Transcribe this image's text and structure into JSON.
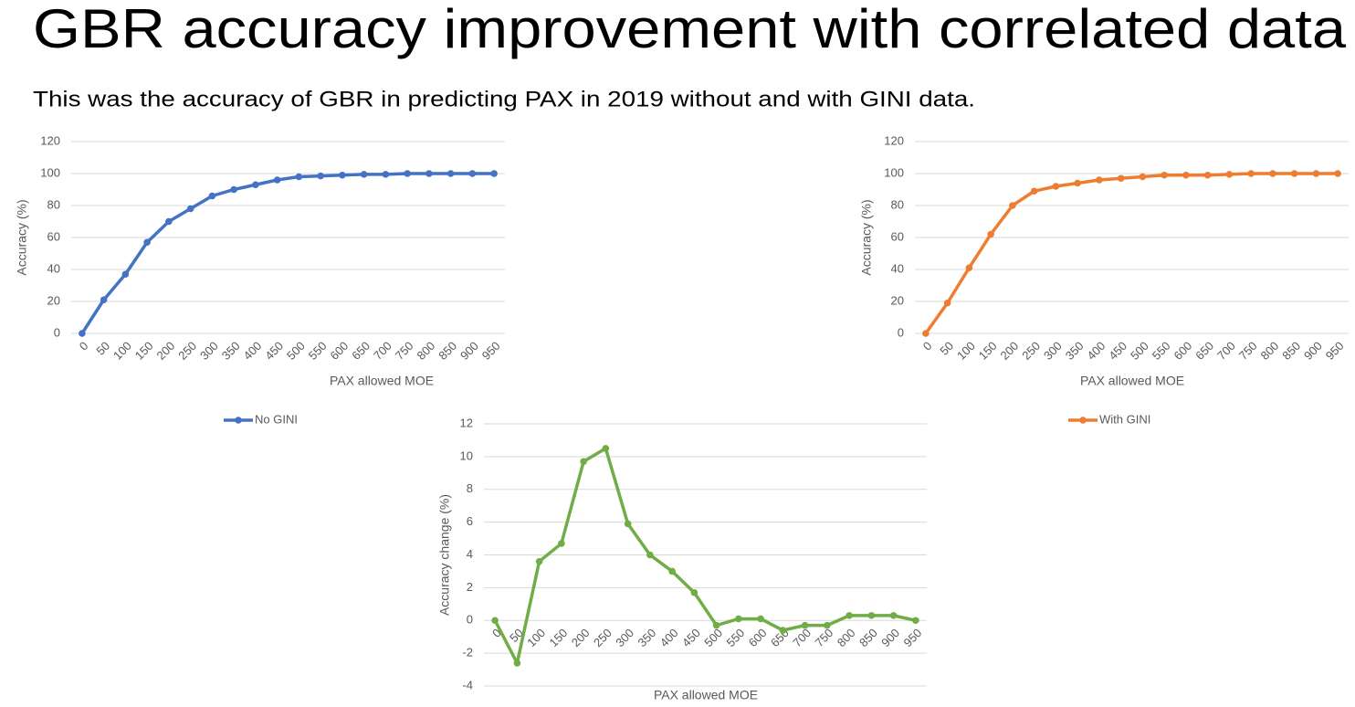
{
  "header": {
    "title": "GBR accuracy improvement with correlated data",
    "subtitle": "This was the accuracy of GBR in predicting PAX in 2019 without and with GINI data."
  },
  "chart_data": [
    {
      "type": "line",
      "x_label": "PAX allowed MOE",
      "y_label": "Accuracy (%)",
      "categories": [
        "0",
        "50",
        "100",
        "150",
        "200",
        "250",
        "300",
        "350",
        "400",
        "450",
        "500",
        "550",
        "600",
        "650",
        "700",
        "750",
        "800",
        "850",
        "900",
        "950"
      ],
      "series": [
        {
          "name": "No GINI",
          "color": "#4472c4",
          "values": [
            0,
            21,
            37,
            57,
            70,
            78,
            86,
            90,
            93,
            96,
            98,
            98.5,
            99,
            99.5,
            99.5,
            100,
            100,
            100,
            100,
            100
          ]
        }
      ],
      "ylim": [
        0,
        120
      ],
      "yticks": [
        0,
        20,
        40,
        60,
        80,
        100,
        120
      ],
      "grid": true,
      "legend": "bottom"
    },
    {
      "type": "line",
      "x_label": "PAX allowed MOE",
      "y_label": "Accuracy (%)",
      "categories": [
        "0",
        "50",
        "100",
        "150",
        "200",
        "250",
        "300",
        "350",
        "400",
        "450",
        "500",
        "550",
        "600",
        "650",
        "700",
        "750",
        "800",
        "850",
        "900",
        "950"
      ],
      "series": [
        {
          "name": "With GINI",
          "color": "#ed7d31",
          "values": [
            0,
            19,
            41,
            62,
            80,
            89,
            92,
            94,
            96,
            97,
            98,
            99,
            99,
            99,
            99.5,
            100,
            100,
            100,
            100,
            100
          ]
        }
      ],
      "ylim": [
        0,
        120
      ],
      "yticks": [
        0,
        20,
        40,
        60,
        80,
        100,
        120
      ],
      "grid": true,
      "legend": "bottom"
    },
    {
      "type": "line",
      "x_label": "PAX allowed MOE",
      "y_label": "Accuracy change (%)",
      "categories": [
        "0",
        "50",
        "100",
        "150",
        "200",
        "250",
        "300",
        "350",
        "400",
        "450",
        "500",
        "550",
        "600",
        "650",
        "700",
        "750",
        "800",
        "850",
        "900",
        "950"
      ],
      "series": [
        {
          "color": "#70ad47",
          "values": [
            0,
            -2.6,
            3.6,
            4.7,
            9.7,
            10.5,
            5.9,
            4.0,
            3.0,
            1.7,
            -0.3,
            0.1,
            0.1,
            -0.6,
            -0.3,
            -0.3,
            0.3,
            0.3,
            0.3,
            0
          ]
        }
      ],
      "ylim": [
        -4,
        12
      ],
      "yticks": [
        -4,
        -2,
        0,
        2,
        4,
        6,
        8,
        10,
        12
      ],
      "grid": true
    }
  ]
}
